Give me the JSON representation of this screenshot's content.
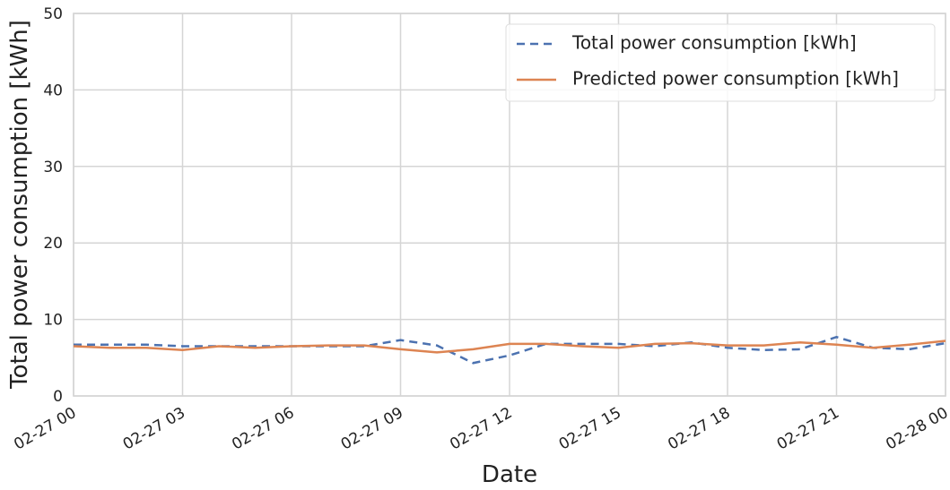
{
  "chart_data": {
    "type": "line",
    "xlabel": "Date",
    "ylabel": "Total power consumption [kWh]",
    "x": [
      0,
      1,
      2,
      3,
      4,
      5,
      6,
      7,
      8,
      9,
      10,
      11,
      12,
      13,
      14,
      15,
      16,
      17,
      18,
      19,
      20,
      21,
      22,
      23,
      24
    ],
    "xlim": [
      0,
      24
    ],
    "xticks": [
      {
        "value": 0,
        "label": "02-27 00"
      },
      {
        "value": 3,
        "label": "02-27 03"
      },
      {
        "value": 6,
        "label": "02-27 06"
      },
      {
        "value": 9,
        "label": "02-27 09"
      },
      {
        "value": 12,
        "label": "02-27 12"
      },
      {
        "value": 15,
        "label": "02-27 15"
      },
      {
        "value": 18,
        "label": "02-27 18"
      },
      {
        "value": 21,
        "label": "02-27 21"
      },
      {
        "value": 24,
        "label": "02-28 00"
      }
    ],
    "ylim": [
      0,
      50
    ],
    "yticks": [
      0,
      10,
      20,
      30,
      40,
      50
    ],
    "grid": true,
    "legend": "upper right",
    "series": [
      {
        "name": "Total power consumption [kWh]",
        "color": "#4c72b0",
        "dash": true,
        "values": [
          6.7,
          6.7,
          6.7,
          6.5,
          6.5,
          6.5,
          6.5,
          6.5,
          6.5,
          7.3,
          6.6,
          4.3,
          5.3,
          6.8,
          6.8,
          6.8,
          6.5,
          7.0,
          6.3,
          6.0,
          6.1,
          7.7,
          6.3,
          6.1,
          6.9
        ]
      },
      {
        "name": "Predicted power consumption [kWh]",
        "color": "#dd8452",
        "dash": false,
        "values": [
          6.5,
          6.3,
          6.3,
          6.0,
          6.5,
          6.3,
          6.5,
          6.6,
          6.6,
          6.1,
          5.7,
          6.1,
          6.8,
          6.8,
          6.5,
          6.3,
          6.8,
          6.9,
          6.6,
          6.6,
          7.0,
          6.7,
          6.3,
          6.7,
          7.2
        ]
      }
    ]
  }
}
